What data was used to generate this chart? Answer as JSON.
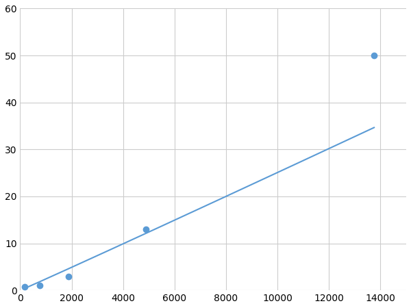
{
  "x": [
    188,
    750,
    1875,
    4875,
    13750
  ],
  "y": [
    0.8,
    1.0,
    3.0,
    13.0,
    50.0
  ],
  "line_color": "#5B9BD5",
  "marker_color": "#5B9BD5",
  "marker_size": 36,
  "line_width": 1.5,
  "xlim": [
    0,
    15000
  ],
  "ylim": [
    0,
    60
  ],
  "xticks": [
    0,
    2000,
    4000,
    6000,
    8000,
    10000,
    12000,
    14000
  ],
  "yticks": [
    0,
    10,
    20,
    30,
    40,
    50,
    60
  ],
  "grid_color": "#cccccc",
  "background_color": "#ffffff",
  "tick_fontsize": 10
}
